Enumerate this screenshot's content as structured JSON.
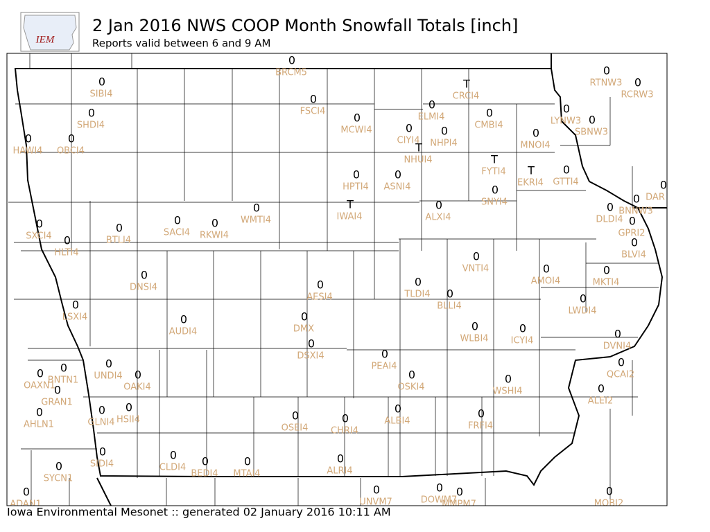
{
  "header": {
    "logo": "IEM",
    "title": "2 Jan 2016 NWS COOP Month Snowfall Totals [inch]",
    "subtitle": "Reports valid between 6 and 9 AM"
  },
  "stations": [
    {
      "id": "BRCM5",
      "value": 0
    },
    {
      "id": "SIBI4",
      "value": 0
    },
    {
      "id": "CRCI4",
      "value": "T"
    },
    {
      "id": "RTNW3",
      "value": 0
    },
    {
      "id": "RCRW3",
      "value": 0
    },
    {
      "id": "FSCI4",
      "value": 0
    },
    {
      "id": "ELMI4",
      "value": 0
    },
    {
      "id": "CMBI4",
      "value": 0
    },
    {
      "id": "LYNW3",
      "value": 0
    },
    {
      "id": "SBNW3",
      "value": 0
    },
    {
      "id": "SHDI4",
      "value": 0
    },
    {
      "id": "MCWI4",
      "value": 0
    },
    {
      "id": "CIYI4",
      "value": 0
    },
    {
      "id": "NHPI4",
      "value": 0
    },
    {
      "id": "MNOI4",
      "value": 0
    },
    {
      "id": "NHUI4",
      "value": "T"
    },
    {
      "id": "HAWI4",
      "value": 0
    },
    {
      "id": "OBCI4",
      "value": 0
    },
    {
      "id": "FYTI4",
      "value": "T"
    },
    {
      "id": "EKRI4",
      "value": "T"
    },
    {
      "id": "GTTI4",
      "value": 0
    },
    {
      "id": "HPTI4",
      "value": 0
    },
    {
      "id": "ASNI4",
      "value": 0
    },
    {
      "id": "SNYI4",
      "value": 0
    },
    {
      "id": "DAR",
      "value": 0
    },
    {
      "id": "BNNW3",
      "value": 0
    },
    {
      "id": "DLDI4",
      "value": 0
    },
    {
      "id": "IWAI4",
      "value": "T"
    },
    {
      "id": "ALXI4",
      "value": 0
    },
    {
      "id": "WMTI4",
      "value": 0
    },
    {
      "id": "GPRI2",
      "value": 0
    },
    {
      "id": "SXCI4",
      "value": 0
    },
    {
      "id": "SACI4",
      "value": 0
    },
    {
      "id": "RKWI4",
      "value": 0
    },
    {
      "id": "BTLI4",
      "value": 0
    },
    {
      "id": "HLTI4",
      "value": 0
    },
    {
      "id": "BLVI4",
      "value": 0
    },
    {
      "id": "VNTI4",
      "value": 0
    },
    {
      "id": "AMOI4",
      "value": 0
    },
    {
      "id": "MKTI4",
      "value": 0
    },
    {
      "id": "DNSI4",
      "value": 0
    },
    {
      "id": "AESI4",
      "value": 0
    },
    {
      "id": "TLDI4",
      "value": 0
    },
    {
      "id": "BLLI4",
      "value": 0
    },
    {
      "id": "LWDI4",
      "value": 0
    },
    {
      "id": "LSXI4",
      "value": 0
    },
    {
      "id": "AUDI4",
      "value": 0
    },
    {
      "id": "DMX",
      "value": 0
    },
    {
      "id": "WLBI4",
      "value": 0
    },
    {
      "id": "ICYI4",
      "value": 0
    },
    {
      "id": "DVNI4",
      "value": 0
    },
    {
      "id": "DSXI4",
      "value": 0
    },
    {
      "id": "PEAI4",
      "value": 0
    },
    {
      "id": "UNDI4",
      "value": 0
    },
    {
      "id": "QCAI2",
      "value": 0
    },
    {
      "id": "BNTN1",
      "value": 0
    },
    {
      "id": "OAKI4",
      "value": 0
    },
    {
      "id": "OAXN1",
      "value": 0
    },
    {
      "id": "OSKI4",
      "value": 0
    },
    {
      "id": "WSHI4",
      "value": 0
    },
    {
      "id": "GRAN1",
      "value": 0
    },
    {
      "id": "ALEI2",
      "value": 0
    },
    {
      "id": "HSII4",
      "value": 0
    },
    {
      "id": "GLNI4",
      "value": 0
    },
    {
      "id": "AHLN1",
      "value": 0
    },
    {
      "id": "ALBI4",
      "value": 0
    },
    {
      "id": "FRFI4",
      "value": 0
    },
    {
      "id": "OSEI4",
      "value": 0
    },
    {
      "id": "CHRI4",
      "value": 0
    },
    {
      "id": "SIDI4",
      "value": 0
    },
    {
      "id": "CLDI4",
      "value": 0
    },
    {
      "id": "BEDI4",
      "value": 0
    },
    {
      "id": "MTAI4",
      "value": 0
    },
    {
      "id": "ALRI4",
      "value": 0
    },
    {
      "id": "SYCN1",
      "value": 0
    },
    {
      "id": "DOWM7",
      "value": 0
    },
    {
      "id": "UNVM7",
      "value": 0
    },
    {
      "id": "MMPM7",
      "value": 0
    },
    {
      "id": "MOBI2",
      "value": 0
    },
    {
      "id": "ADAN1",
      "value": 0
    }
  ],
  "footer": "Iowa Environmental Mesonet :: generated 02 January 2016 10:11 AM"
}
